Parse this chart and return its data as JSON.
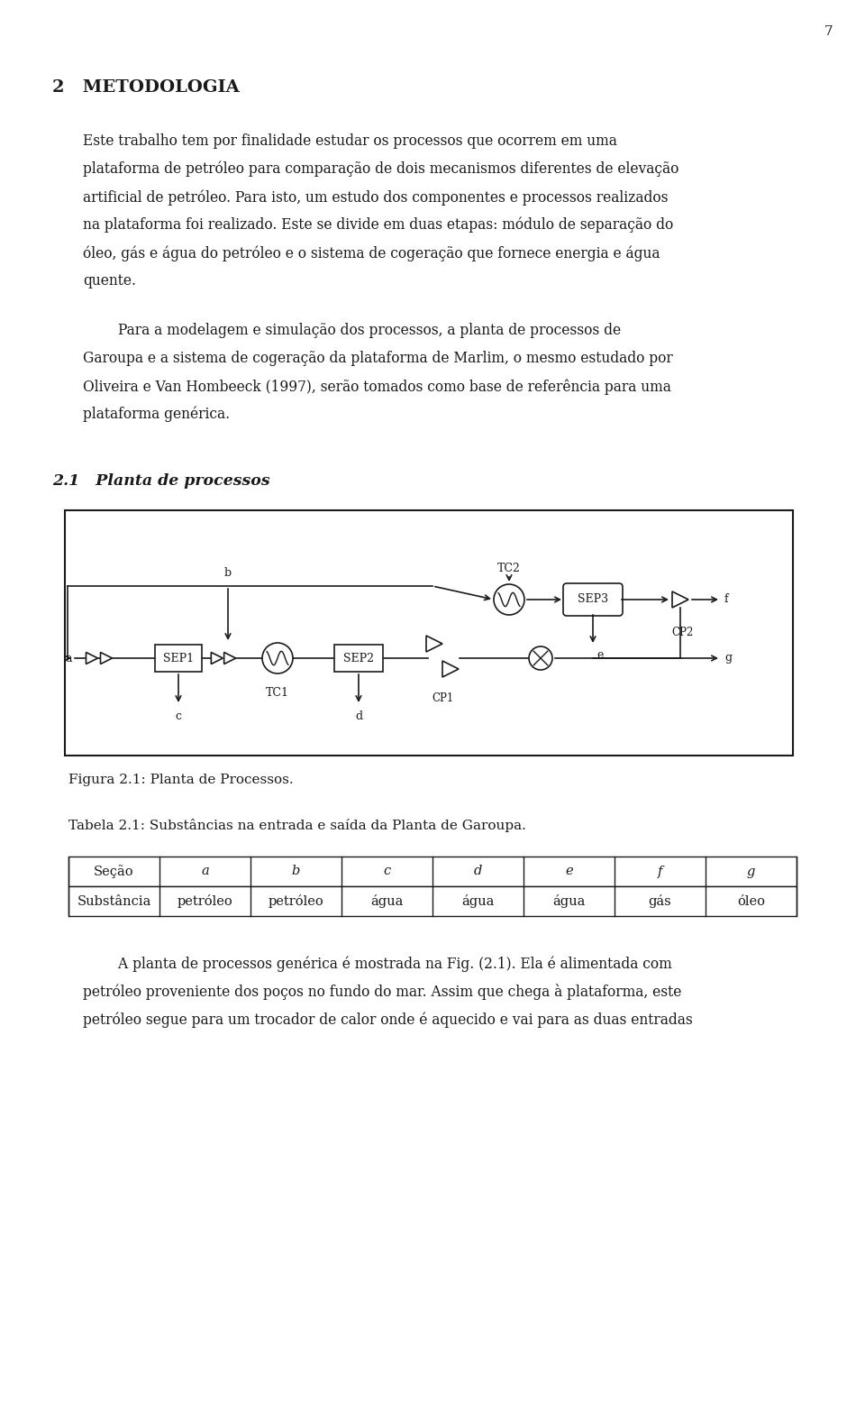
{
  "page_number": "7",
  "bg_color": "#ffffff",
  "text_color": "#1a1a1a",
  "section_heading": "2   METODOLOGIA",
  "subsection_heading": "2.1   Planta de processos",
  "figure_caption": "Figura 2.1: Planta de Processos.",
  "table_caption": "Tabela 2.1: Substâncias na entrada e saída da Planta de Garoupa.",
  "table_headers": [
    "Seção",
    "a",
    "b",
    "c",
    "d",
    "e",
    "f",
    "g"
  ],
  "table_row": [
    "Substância",
    "petróleo",
    "petróleo",
    "água",
    "água",
    "água",
    "gás",
    "óleo"
  ],
  "para1_lines": [
    "Este trabalho tem por finalidade estudar os processos que ocorrem em uma",
    "plataforma de petróleo para comparação de dois mecanismos diferentes de elevação",
    "artificial de petróleo. Para isto, um estudo dos componentes e processos realizados",
    "na plataforma foi realizado. Este se divide em duas etapas: módulo de separação do",
    "óleo, gás e água do petróleo e o sistema de cogeração que fornece energia e água",
    "quente."
  ],
  "para2_lines": [
    "        Para a modelagem e simulação dos processos, a planta de processos de",
    "Garoupa e a sistema de cogeração da plataforma de Marlim, o mesmo estudado por",
    "Oliveira e Van Hombeeck (1997), serão tomados como base de referência para uma",
    "plataforma genérica."
  ],
  "para3_lines": [
    "        A planta de processos genérica é mostrada na Fig. (2.1). Ela é alimentada com",
    "petróleo proveniente dos poços no fundo do mar. Assim que chega à plataforma, este",
    "petróleo segue para um trocador de calor onde é aquecido e vai para as duas entradas"
  ]
}
